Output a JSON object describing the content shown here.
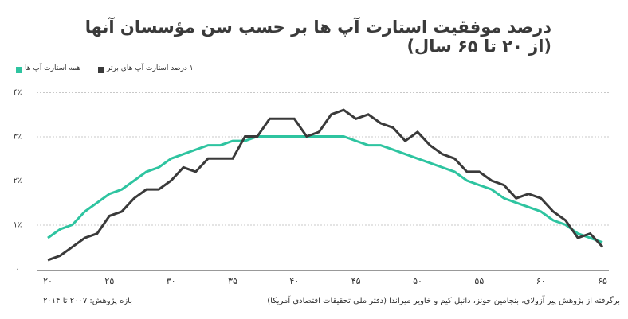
{
  "title": "درصد موفقیت استارت آپ ها بر حسب سن مؤسسان آنها (از ۲۰ تا ۶۵ سال)",
  "legend": {
    "green_label": "همه استارت آپ ها",
    "dark_label": "۱ درصد استارت آپ های برتر"
  },
  "footer": {
    "source": "برگرفته از پژوهش پیر آزولای، بنجامین جونز، دانیل کیم و خاویر میراندا (دفتر ملی تحقیقات اقتصادی آمریکا)",
    "period": "بازه پژوهش: ۲۰۰۷ تا ۲۰۱۴"
  },
  "colors": {
    "green": "#2ec4a0",
    "dark": "#3a3a3a",
    "grid": "#c8c8c8"
  },
  "chart_data": {
    "type": "line",
    "title": "درصد موفقیت استارت آپ ها بر حسب سن مؤسسان آنها (از ۲۰ تا ۶۵ سال)",
    "xlim": [
      20,
      65
    ],
    "ylim": [
      0,
      4
    ],
    "xticks": [
      {
        "value": 20,
        "label": "۲۰"
      },
      {
        "value": 25,
        "label": "۲۵"
      },
      {
        "value": 30,
        "label": "۳۰"
      },
      {
        "value": 35,
        "label": "۳۵"
      },
      {
        "value": 40,
        "label": "۴۰"
      },
      {
        "value": 45,
        "label": "۴۵"
      },
      {
        "value": 50,
        "label": "۵۰"
      },
      {
        "value": 55,
        "label": "۵۵"
      },
      {
        "value": 60,
        "label": "۶۰"
      },
      {
        "value": 65,
        "label": "۶۵"
      }
    ],
    "yticks": [
      {
        "value": 0,
        "label": "۰"
      },
      {
        "value": 1,
        "label": "۱٪"
      },
      {
        "value": 2,
        "label": "۲٪"
      },
      {
        "value": 3,
        "label": "۳٪"
      },
      {
        "value": 4,
        "label": "۴٪"
      }
    ],
    "grid": true,
    "legend_position": "top-left",
    "x": [
      20,
      21,
      22,
      23,
      24,
      25,
      26,
      27,
      28,
      29,
      30,
      31,
      32,
      33,
      34,
      35,
      36,
      37,
      38,
      39,
      40,
      41,
      42,
      43,
      44,
      45,
      46,
      47,
      48,
      49,
      50,
      51,
      52,
      53,
      54,
      55,
      56,
      57,
      58,
      59,
      60,
      61,
      62,
      63,
      64,
      65
    ],
    "series": [
      {
        "name": "همه استارت آپ ها",
        "color": "#2ec4a0",
        "values": [
          0.7,
          0.9,
          1.0,
          1.3,
          1.5,
          1.7,
          1.8,
          2.0,
          2.2,
          2.3,
          2.5,
          2.6,
          2.7,
          2.8,
          2.8,
          2.9,
          2.9,
          3.0,
          3.0,
          3.0,
          3.0,
          3.0,
          3.0,
          3.0,
          3.0,
          2.9,
          2.8,
          2.8,
          2.7,
          2.6,
          2.5,
          2.4,
          2.3,
          2.2,
          2.0,
          1.9,
          1.8,
          1.6,
          1.5,
          1.4,
          1.3,
          1.1,
          1.0,
          0.8,
          0.7,
          0.6
        ]
      },
      {
        "name": "۱ درصد استارت آپ های برتر",
        "color": "#3a3a3a",
        "values": [
          0.2,
          0.3,
          0.5,
          0.7,
          0.8,
          1.2,
          1.3,
          1.6,
          1.8,
          1.8,
          2.0,
          2.3,
          2.2,
          2.5,
          2.5,
          2.5,
          3.0,
          3.0,
          3.4,
          3.4,
          3.4,
          3.0,
          3.1,
          3.5,
          3.6,
          3.4,
          3.5,
          3.3,
          3.2,
          2.9,
          3.1,
          2.8,
          2.6,
          2.5,
          2.2,
          2.2,
          2.0,
          1.9,
          1.6,
          1.7,
          1.6,
          1.3,
          1.1,
          0.7,
          0.8,
          0.5
        ]
      }
    ]
  }
}
